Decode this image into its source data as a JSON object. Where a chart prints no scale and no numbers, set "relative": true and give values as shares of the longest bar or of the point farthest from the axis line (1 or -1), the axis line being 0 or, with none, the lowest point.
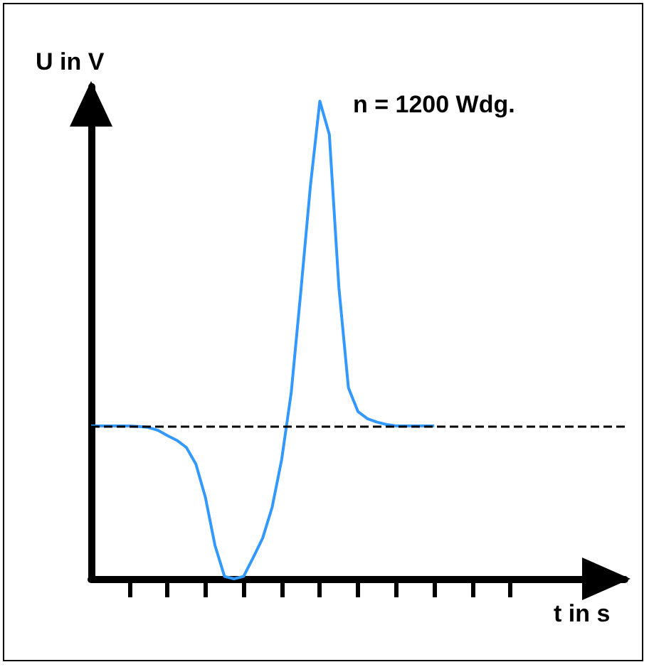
{
  "chart_data": {
    "type": "line",
    "relative": true,
    "xlabel": "t in s",
    "ylabel": "U in V",
    "annotations": [
      "n = 1200 Wdg."
    ],
    "categories": [
      null,
      null,
      null,
      null,
      null,
      null,
      null,
      null,
      null,
      null,
      null,
      null,
      null,
      null,
      null,
      null,
      null,
      null,
      null,
      null,
      null,
      null,
      null,
      null,
      null,
      null,
      null,
      null,
      null,
      null,
      null,
      null,
      null,
      null,
      null,
      null,
      null
    ],
    "series": [
      {
        "color": "#3399ff",
        "values": [
          0.32,
          0.32,
          0.32,
          0.32,
          0.32,
          0.319,
          0.317,
          0.311,
          0.3,
          0.29,
          0.275,
          0.24,
          0.17,
          0.07,
          0.005,
          0,
          0.005,
          0.044,
          0.085,
          0.15,
          0.25,
          0.39,
          0.6,
          0.82,
          1,
          0.93,
          0.61,
          0.4,
          0.35,
          0.335,
          0.328,
          0.323,
          0.32,
          0.32,
          0.32,
          0.32,
          0.32
        ]
      }
    ],
    "ref_lines": [
      {
        "axis": "y",
        "value": 0.32,
        "color": "#000000",
        "line_style": "dashed"
      }
    ],
    "line_style": "solid"
  }
}
